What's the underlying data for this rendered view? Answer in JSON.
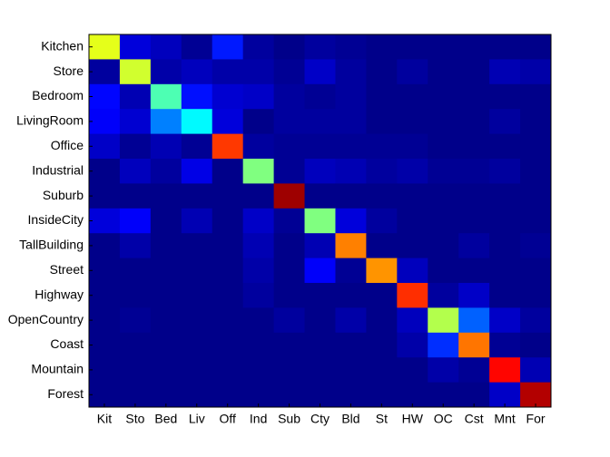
{
  "chart_data": {
    "type": "heatmap",
    "colormap": "jet",
    "rows": [
      "Kitchen",
      "Store",
      "Bedroom",
      "LivingRoom",
      "Office",
      "Industrial",
      "Suburb",
      "InsideCity",
      "TallBuilding",
      "Street",
      "Highway",
      "OpenCountry",
      "Coast",
      "Mountain",
      "Forest"
    ],
    "columns": [
      "Kit",
      "Sto",
      "Bed",
      "Liv",
      "Off",
      "Ind",
      "Sub",
      "Cty",
      "Bld",
      "St",
      "HW",
      "OC",
      "Cst",
      "Mnt",
      "For"
    ],
    "values": [
      [
        0.6,
        0.09,
        0.06,
        0.02,
        0.15,
        0.03,
        0.01,
        0.03,
        0.02,
        0.01,
        0.01,
        0.01,
        0.01,
        0.01,
        0.01
      ],
      [
        0.03,
        0.58,
        0.04,
        0.06,
        0.04,
        0.04,
        0.02,
        0.07,
        0.03,
        0.01,
        0.03,
        0.01,
        0.01,
        0.05,
        0.04
      ],
      [
        0.13,
        0.05,
        0.45,
        0.14,
        0.08,
        0.07,
        0.03,
        0.02,
        0.03,
        0.01,
        0.01,
        0.01,
        0.01,
        0.01,
        0.01
      ],
      [
        0.12,
        0.08,
        0.25,
        0.37,
        0.09,
        0.01,
        0.03,
        0.03,
        0.03,
        0.01,
        0.01,
        0.01,
        0.01,
        0.03,
        0.01
      ],
      [
        0.07,
        0.02,
        0.05,
        0.02,
        0.82,
        0.03,
        0.02,
        0.02,
        0.02,
        0.02,
        0.02,
        0.01,
        0.01,
        0.01,
        0.01
      ],
      [
        0.01,
        0.06,
        0.03,
        0.1,
        0.01,
        0.5,
        0.02,
        0.06,
        0.05,
        0.03,
        0.04,
        0.02,
        0.02,
        0.03,
        0.01
      ],
      [
        0.01,
        0.01,
        0.01,
        0.01,
        0.01,
        0.01,
        0.97,
        0.01,
        0.01,
        0.01,
        0.01,
        0.01,
        0.01,
        0.01,
        0.01
      ],
      [
        0.09,
        0.12,
        0.01,
        0.05,
        0.01,
        0.07,
        0.02,
        0.5,
        0.09,
        0.03,
        0.01,
        0.01,
        0.01,
        0.01,
        0.01
      ],
      [
        0.01,
        0.04,
        0.01,
        0.01,
        0.01,
        0.05,
        0.01,
        0.05,
        0.75,
        0.01,
        0.01,
        0.01,
        0.03,
        0.01,
        0.02
      ],
      [
        0.01,
        0.01,
        0.01,
        0.01,
        0.01,
        0.04,
        0.01,
        0.12,
        0.02,
        0.73,
        0.06,
        0.01,
        0.01,
        0.01,
        0.01
      ],
      [
        0.01,
        0.01,
        0.01,
        0.01,
        0.01,
        0.03,
        0.01,
        0.01,
        0.01,
        0.01,
        0.83,
        0.03,
        0.07,
        0.01,
        0.01
      ],
      [
        0.01,
        0.02,
        0.01,
        0.01,
        0.01,
        0.01,
        0.03,
        0.01,
        0.04,
        0.01,
        0.06,
        0.55,
        0.22,
        0.07,
        0.03
      ],
      [
        0.01,
        0.01,
        0.01,
        0.01,
        0.01,
        0.01,
        0.01,
        0.01,
        0.01,
        0.01,
        0.04,
        0.17,
        0.76,
        0.02,
        0.01
      ],
      [
        0.01,
        0.01,
        0.01,
        0.01,
        0.01,
        0.01,
        0.01,
        0.01,
        0.01,
        0.01,
        0.01,
        0.04,
        0.02,
        0.87,
        0.05
      ],
      [
        0.01,
        0.01,
        0.01,
        0.01,
        0.01,
        0.01,
        0.01,
        0.01,
        0.01,
        0.01,
        0.01,
        0.01,
        0.01,
        0.07,
        0.95
      ]
    ]
  }
}
